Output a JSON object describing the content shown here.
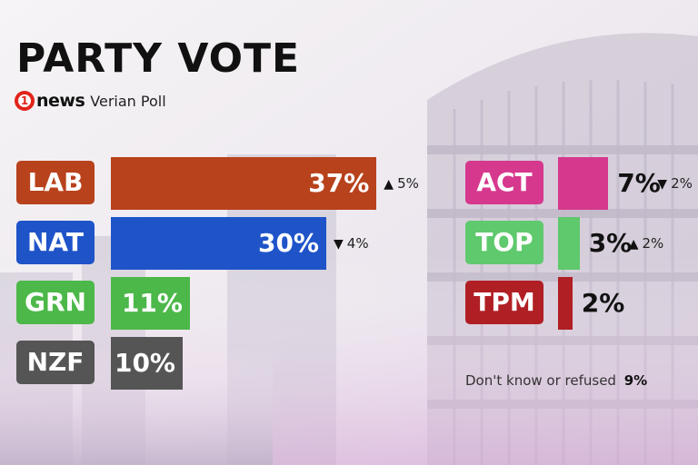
{
  "header": {
    "title": "PARTY VOTE",
    "brand_mark": "1",
    "brand_word": "news",
    "poll_name": "Verian Poll"
  },
  "chart_data": {
    "type": "bar",
    "title": "PARTY VOTE",
    "subtitle": "Verian Poll",
    "categories": [
      "LAB",
      "NAT",
      "GRN",
      "NZF",
      "ACT",
      "TOP",
      "TPM"
    ],
    "values": [
      37,
      30,
      11,
      10,
      7,
      3,
      2
    ],
    "labels": [
      "37%",
      "30%",
      "11%",
      "10%",
      "7%",
      "3%",
      "2%"
    ],
    "colors": [
      "#b8421c",
      "#1f54c9",
      "#4cb849",
      "#555555",
      "#d6388d",
      "#5fc96d",
      "#b01f24"
    ],
    "changes": [
      {
        "direction": "up",
        "label": "5%"
      },
      {
        "direction": "down",
        "label": "4%"
      },
      null,
      null,
      {
        "direction": "down",
        "label": "2%"
      },
      {
        "direction": "up",
        "label": "2%"
      },
      null
    ]
  },
  "footnote": {
    "text": "Don't know or refused",
    "value": "9%"
  }
}
